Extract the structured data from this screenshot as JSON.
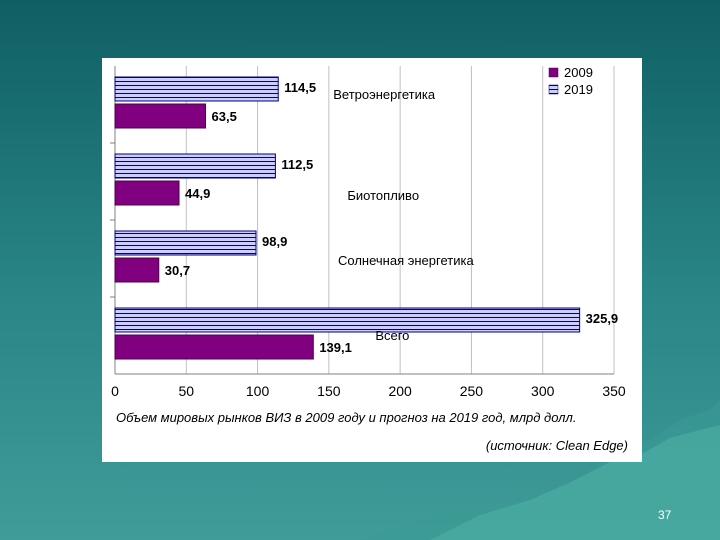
{
  "slide": {
    "number": "37",
    "caption": "Объем мировых рынков ВИЗ в 2009 году и прогноз на 2019 год, млрд долл.",
    "source": "(источник: Clean Edge)"
  },
  "chart_data": {
    "type": "bar",
    "orientation": "horizontal",
    "categories": [
      "Ветроэнергетика",
      "Биотопливо",
      "Солнечная энергетика",
      "Всего"
    ],
    "series": [
      {
        "name": "2009",
        "values": [
          63.5,
          44.9,
          30.7,
          139.1
        ],
        "labels": [
          "63,5",
          "44,9",
          "30,7",
          "139,1"
        ],
        "color": "#800080",
        "pattern": "solid"
      },
      {
        "name": "2019",
        "values": [
          114.5,
          112.5,
          98.9,
          325.9
        ],
        "labels": [
          "114,5",
          "112,5",
          "98,9",
          "325,9"
        ],
        "color": "#ccccff",
        "pattern": "horizontal-lines"
      }
    ],
    "xlim": [
      0,
      350
    ],
    "xticks": [
      0,
      50,
      100,
      150,
      200,
      250,
      300,
      350
    ],
    "grid": true,
    "legend": "top-right",
    "xlabel": "",
    "ylabel": ""
  }
}
